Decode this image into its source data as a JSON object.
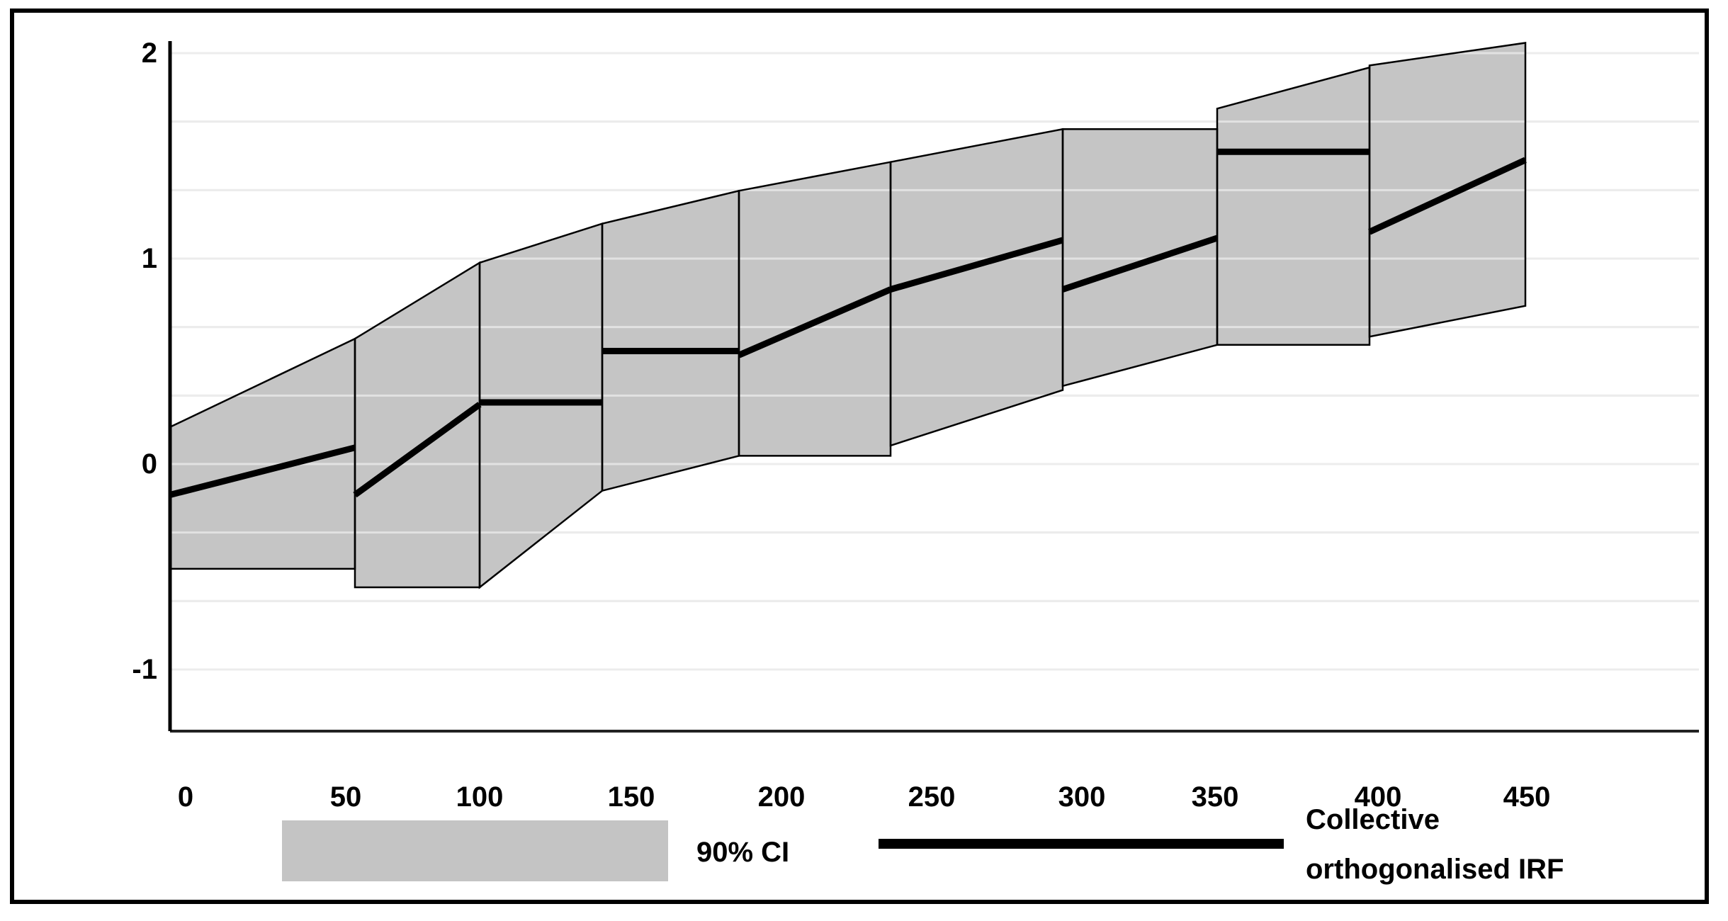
{
  "figure": {
    "kind": "impulse-response-function chart with confidence band",
    "background": "#ffffff"
  },
  "y_axis": {
    "tick_labels": [
      "2",
      "1",
      "0",
      "-1"
    ],
    "tick_values": [
      2,
      1,
      0,
      -1
    ]
  },
  "x_axis": {
    "tick_labels": [
      "0",
      "50",
      "100",
      "150",
      "200",
      "250",
      "300",
      "350",
      "400",
      "450"
    ],
    "tick_values": [
      0,
      50,
      100,
      150,
      200,
      250,
      300,
      350,
      400,
      450
    ]
  },
  "legend": {
    "ci_label": "90% CI",
    "irf_label": "Collective orthogonalised IRF",
    "irf_label_lines": [
      "Collective",
      "orthogonalised IRF"
    ]
  },
  "colors": {
    "band_fill": "#c5c5c5",
    "band_border": "#000000",
    "irf_line": "#000000",
    "gridline": "#d9d9d9",
    "gridline_over_band": "rgba(255,255,255,0.5)",
    "axis": "#222222",
    "text": "#000000",
    "figure_border": "#000000"
  },
  "chart_data": {
    "type": "area",
    "subtype": "stepped IRF line with shaded 90% confidence band, drawn as 9 bordered polygon segments",
    "title": "",
    "xlabel": "",
    "ylabel": "",
    "xlim": [
      0,
      450
    ],
    "ylim": [
      -1.33,
      2.1
    ],
    "grid": "horizontal gridlines every 1/3 unit",
    "gridline_values": [
      2,
      1.667,
      1.333,
      1,
      0.667,
      0.333,
      0,
      -0.333,
      -0.667,
      -1
    ],
    "legend_position": "bottom",
    "series": [
      {
        "name": "90% CI",
        "type": "band"
      },
      {
        "name": "Collective orthogonalised IRF",
        "type": "line"
      }
    ],
    "segments": [
      {
        "x0": 0,
        "x1": 50,
        "upper0": 0.18,
        "upper1": 0.61,
        "lower0": -0.51,
        "lower1": -0.51,
        "irf0": -0.15,
        "irf1": 0.08
      },
      {
        "x0": 50,
        "x1": 100,
        "upper0": 0.61,
        "upper1": 0.98,
        "lower0": -0.6,
        "lower1": -0.6,
        "irf0": -0.15,
        "irf1": 0.29
      },
      {
        "x0": 100,
        "x1": 150,
        "upper0": 0.98,
        "upper1": 1.17,
        "lower0": -0.6,
        "lower1": -0.13,
        "irf0": 0.3,
        "irf1": 0.3
      },
      {
        "x0": 150,
        "x1": 200,
        "upper0": 1.17,
        "upper1": 1.33,
        "lower0": -0.13,
        "lower1": 0.04,
        "irf0": 0.55,
        "irf1": 0.55
      },
      {
        "x0": 200,
        "x1": 250,
        "upper0": 1.33,
        "upper1": 1.47,
        "lower0": 0.04,
        "lower1": 0.04,
        "irf0": 0.53,
        "irf1": 0.85
      },
      {
        "x0": 250,
        "x1": 300,
        "upper0": 1.47,
        "upper1": 1.63,
        "lower0": 0.09,
        "lower1": 0.36,
        "irf0": 0.85,
        "irf1": 1.09
      },
      {
        "x0": 300,
        "x1": 350,
        "upper0": 1.63,
        "upper1": 1.63,
        "lower0": 0.38,
        "lower1": 0.58,
        "irf0": 0.85,
        "irf1": 1.1
      },
      {
        "x0": 350,
        "x1": 400,
        "upper0": 1.73,
        "upper1": 1.93,
        "lower0": 0.58,
        "lower1": 0.58,
        "irf0": 1.52,
        "irf1": 1.52
      },
      {
        "x0": 400,
        "x1": 450,
        "upper0": 1.94,
        "upper1": 2.05,
        "lower0": 0.62,
        "lower1": 0.77,
        "irf0": 1.13,
        "irf1": 1.48
      }
    ]
  }
}
